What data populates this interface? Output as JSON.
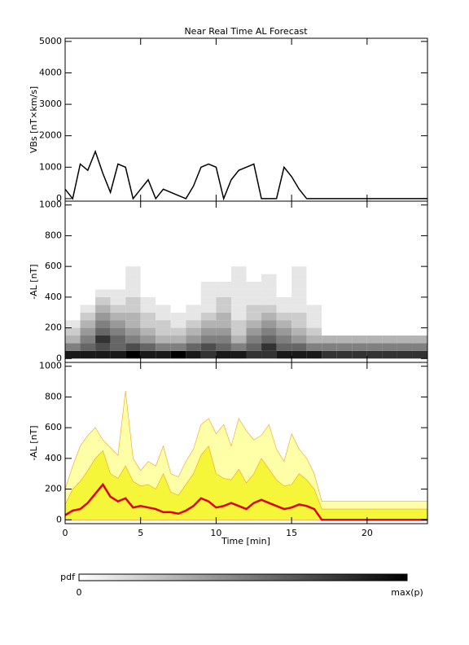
{
  "chart_data": [
    {
      "type": "line",
      "title": "Near Real Time AL Forecast",
      "ylabel": "VBs [nT×km/s]",
      "color": "#000000",
      "x": [
        0,
        0.5,
        1,
        1.5,
        2,
        2.5,
        3,
        3.5,
        4,
        4.5,
        5,
        5.5,
        6,
        6.5,
        7,
        7.5,
        8,
        8.5,
        9,
        9.5,
        10,
        10.5,
        11,
        11.5,
        12,
        12.5,
        13,
        13.5,
        14,
        14.5,
        15,
        15.5,
        16,
        16.5,
        17,
        24
      ],
      "values": [
        300,
        0,
        1100,
        900,
        1500,
        800,
        200,
        1100,
        1000,
        0,
        300,
        600,
        0,
        300,
        200,
        100,
        0,
        400,
        1000,
        1100,
        1000,
        0,
        600,
        900,
        1000,
        1100,
        0,
        0,
        0,
        1000,
        700,
        300,
        0,
        0,
        0,
        0
      ],
      "xlim": [
        0,
        24
      ],
      "xticks": [
        0,
        5,
        10,
        15,
        20
      ],
      "ylim": [
        -80,
        5100
      ],
      "yticks": [
        0,
        1000,
        2000,
        3000,
        4000,
        5000
      ]
    },
    {
      "type": "heatmap",
      "ylabel": "-AL [nT]",
      "x_bins": [
        0,
        1,
        2,
        3,
        4,
        5,
        6,
        7,
        8,
        9,
        10,
        11,
        12,
        13,
        14,
        15,
        16,
        17,
        18,
        19,
        20,
        21,
        22,
        23,
        24
      ],
      "y_bins": [
        0,
        50,
        100,
        150,
        200,
        250,
        300,
        350,
        400,
        450,
        500,
        550,
        600
      ],
      "values": [
        [
          0.9,
          0.5,
          0.3,
          0.2,
          0.1,
          0,
          0,
          0,
          0,
          0,
          0,
          0
        ],
        [
          0.9,
          0.6,
          0.5,
          0.4,
          0.3,
          0.2,
          0.1,
          0,
          0,
          0,
          0,
          0
        ],
        [
          0.9,
          0.7,
          0.8,
          0.6,
          0.5,
          0.4,
          0.3,
          0.2,
          0.1,
          0,
          0,
          0
        ],
        [
          0.9,
          0.6,
          0.6,
          0.5,
          0.4,
          0.3,
          0.2,
          0.1,
          0.1,
          0,
          0,
          0
        ],
        [
          1,
          0.7,
          0.5,
          0.4,
          0.3,
          0.3,
          0.2,
          0.2,
          0.1,
          0.1,
          0.1,
          0.1
        ],
        [
          0.9,
          0.6,
          0.4,
          0.3,
          0.2,
          0.2,
          0.1,
          0.1,
          0,
          0,
          0,
          0
        ],
        [
          0.9,
          0.5,
          0.3,
          0.2,
          0.2,
          0.1,
          0.1,
          0,
          0,
          0,
          0,
          0
        ],
        [
          1,
          0.5,
          0.3,
          0.2,
          0.1,
          0.1,
          0,
          0,
          0,
          0,
          0,
          0
        ],
        [
          0.9,
          0.6,
          0.4,
          0.3,
          0.2,
          0.1,
          0.1,
          0,
          0,
          0,
          0,
          0
        ],
        [
          0.8,
          0.7,
          0.5,
          0.4,
          0.3,
          0.2,
          0.1,
          0.1,
          0.1,
          0.1,
          0,
          0
        ],
        [
          0.9,
          0.6,
          0.5,
          0.4,
          0.3,
          0.3,
          0.2,
          0.2,
          0.1,
          0.1,
          0,
          0
        ],
        [
          0.9,
          0.5,
          0.3,
          0.2,
          0.2,
          0.1,
          0.1,
          0.1,
          0.1,
          0.1,
          0.1,
          0.1
        ],
        [
          0.8,
          0.6,
          0.5,
          0.4,
          0.3,
          0.2,
          0.2,
          0.1,
          0.1,
          0.1,
          0,
          0
        ],
        [
          0.8,
          0.8,
          0.6,
          0.5,
          0.4,
          0.3,
          0.2,
          0.1,
          0.1,
          0.1,
          0.1,
          0
        ],
        [
          0.9,
          0.6,
          0.5,
          0.4,
          0.3,
          0.2,
          0.1,
          0.1,
          0,
          0,
          0,
          0
        ],
        [
          0.9,
          0.6,
          0.4,
          0.3,
          0.2,
          0.2,
          0.1,
          0.1,
          0.1,
          0.1,
          0.1,
          0.1
        ],
        [
          0.9,
          0.5,
          0.3,
          0.2,
          0.1,
          0.1,
          0.1,
          0,
          0,
          0,
          0,
          0
        ],
        [
          0.8,
          0.5,
          0.3,
          0,
          0,
          0,
          0,
          0,
          0,
          0,
          0,
          0
        ],
        [
          0.8,
          0.5,
          0.3,
          0,
          0,
          0,
          0,
          0,
          0,
          0,
          0,
          0
        ],
        [
          0.8,
          0.5,
          0.3,
          0,
          0,
          0,
          0,
          0,
          0,
          0,
          0,
          0
        ],
        [
          0.8,
          0.5,
          0.3,
          0,
          0,
          0,
          0,
          0,
          0,
          0,
          0,
          0
        ],
        [
          0.8,
          0.5,
          0.3,
          0,
          0,
          0,
          0,
          0,
          0,
          0,
          0,
          0
        ],
        [
          0.8,
          0.5,
          0.3,
          0,
          0,
          0,
          0,
          0,
          0,
          0,
          0,
          0
        ],
        [
          0.8,
          0.5,
          0.3,
          0,
          0,
          0,
          0,
          0,
          0,
          0,
          0,
          0
        ]
      ],
      "colorbar": {
        "label": "pdf",
        "min_label": "0",
        "max_label": "max(p)"
      },
      "xlim": [
        0,
        24
      ],
      "xticks": [
        0,
        5,
        10,
        15,
        20
      ],
      "ylim": [
        -25,
        1025
      ],
      "yticks": [
        0,
        200,
        400,
        600,
        800,
        1000
      ]
    },
    {
      "type": "area",
      "ylabel": "-AL [nT]",
      "xlabel": "Time [min]",
      "x": [
        0,
        0.5,
        1,
        1.5,
        2,
        2.5,
        3,
        3.5,
        4,
        4.5,
        5,
        5.5,
        6,
        6.5,
        7,
        7.5,
        8,
        8.5,
        9,
        9.5,
        10,
        10.5,
        11,
        11.5,
        12,
        12.5,
        13,
        13.5,
        14,
        14.5,
        15,
        15.5,
        16,
        16.5,
        17,
        17.5,
        18,
        18.5,
        19,
        19.5,
        20,
        20.5,
        21,
        21.5,
        22,
        22.5,
        23,
        23.5,
        24
      ],
      "series": [
        {
          "style": "area",
          "color": "#ffffa8",
          "values": [
            200,
            350,
            480,
            550,
            600,
            520,
            470,
            420,
            840,
            400,
            320,
            380,
            350,
            480,
            300,
            280,
            380,
            460,
            620,
            660,
            560,
            620,
            480,
            660,
            580,
            520,
            550,
            620,
            460,
            380,
            560,
            460,
            400,
            300,
            120,
            120,
            120,
            120,
            120,
            120,
            120,
            120,
            120,
            120,
            120,
            120,
            120,
            120,
            120
          ]
        },
        {
          "style": "area",
          "color": "#f5f53a",
          "values": [
            100,
            200,
            250,
            320,
            400,
            450,
            300,
            270,
            350,
            250,
            220,
            230,
            200,
            300,
            180,
            160,
            230,
            300,
            420,
            480,
            300,
            270,
            260,
            330,
            240,
            300,
            400,
            330,
            260,
            220,
            230,
            300,
            260,
            200,
            70,
            70,
            70,
            70,
            70,
            70,
            70,
            70,
            70,
            70,
            70,
            70,
            70,
            70,
            70
          ]
        },
        {
          "style": "line",
          "color": "#e00000",
          "values": [
            30,
            60,
            70,
            110,
            170,
            230,
            150,
            120,
            140,
            80,
            90,
            80,
            70,
            50,
            50,
            40,
            60,
            90,
            140,
            120,
            80,
            90,
            110,
            90,
            70,
            110,
            130,
            110,
            90,
            70,
            80,
            100,
            90,
            70,
            0,
            0,
            0,
            0,
            0,
            0,
            0,
            0,
            0,
            0,
            0,
            0,
            0,
            0,
            0
          ]
        }
      ],
      "xlim": [
        0,
        24
      ],
      "xticks": [
        0,
        5,
        10,
        15,
        20
      ],
      "ylim": [
        -25,
        1025
      ],
      "yticks": [
        0,
        200,
        400,
        600,
        800,
        1000
      ]
    }
  ]
}
